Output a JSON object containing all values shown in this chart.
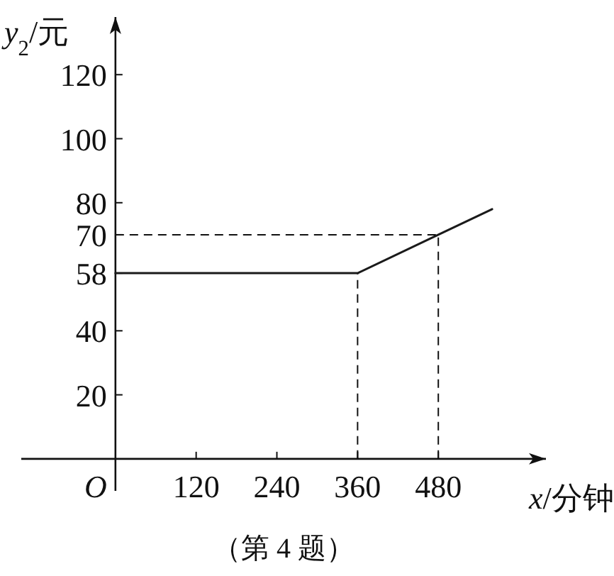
{
  "chart_data": {
    "type": "line",
    "xlabel": "*x*/分钟",
    "ylabel": "*y*$_{2}$/元",
    "x": [
      0,
      360,
      480,
      560
    ],
    "series": [
      {
        "color": "#1a1a1a",
        "values": [
          58,
          58,
          70,
          78
        ]
      }
    ],
    "xlim": [
      -140,
      640
    ],
    "ylim": [
      -10,
      138
    ],
    "xticks": [
      {
        "value": 0,
        "label": "O"
      },
      120,
      240,
      360,
      480
    ],
    "yticks": [
      20,
      40,
      58,
      70,
      80,
      100,
      120
    ],
    "ref_lines": [
      {
        "axis": "y",
        "value": 70,
        "line_style": "dashed"
      },
      {
        "axis": "x",
        "value": 360,
        "line_style": "dashed"
      },
      {
        "axis": "x",
        "value": 480,
        "line_style": "dashed"
      }
    ],
    "annotations": [
      "（第 4 题）"
    ]
  }
}
